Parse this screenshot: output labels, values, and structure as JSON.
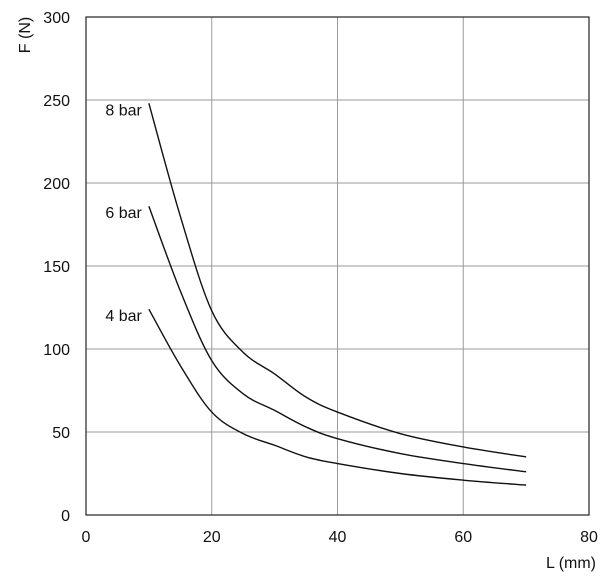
{
  "chart_data": {
    "type": "line",
    "title": "",
    "xlabel": "L (mm)",
    "ylabel": "F (N)",
    "xlim": [
      0,
      80
    ],
    "ylim": [
      0,
      300
    ],
    "xticks": [
      "0",
      "20",
      "40",
      "60",
      "80"
    ],
    "yticks": [
      "0",
      "50",
      "100",
      "150",
      "200",
      "250",
      "300"
    ],
    "grid": true,
    "legend": "none",
    "series": [
      {
        "name": "8 bar",
        "x": [
          10,
          15,
          20,
          25,
          30,
          35,
          40,
          50,
          60,
          70
        ],
        "y": [
          248,
          180,
          123,
          98,
          85,
          71,
          62,
          49,
          41,
          35
        ]
      },
      {
        "name": "6 bar",
        "x": [
          10,
          15,
          20,
          25,
          30,
          35,
          40,
          50,
          60,
          70
        ],
        "y": [
          186,
          135,
          93,
          73,
          63,
          53,
          46,
          37,
          31,
          26
        ]
      },
      {
        "name": "4 bar",
        "x": [
          10,
          15,
          20,
          25,
          30,
          35,
          40,
          50,
          60,
          70
        ],
        "y": [
          124,
          90,
          62,
          49,
          42,
          35,
          31,
          25,
          21,
          18
        ]
      }
    ]
  }
}
